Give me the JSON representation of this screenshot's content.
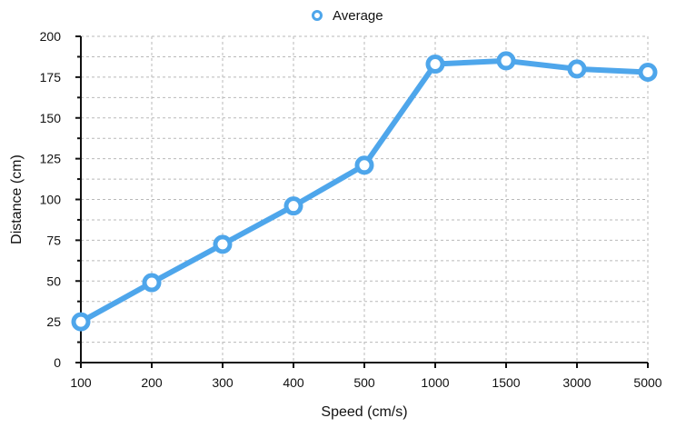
{
  "chart_data": {
    "type": "line",
    "categories": [
      "100",
      "200",
      "300",
      "400",
      "500",
      "1000",
      "1500",
      "3000",
      "5000"
    ],
    "series": [
      {
        "name": "Average",
        "values": [
          25,
          49,
          72.5,
          96,
          121,
          183,
          185,
          180,
          178
        ]
      }
    ],
    "xlabel": "Speed (cm/s)",
    "ylabel": "Distance (cm)",
    "ylim": [
      0,
      200
    ],
    "yticks": [
      0,
      25,
      50,
      75,
      100,
      125,
      150,
      175,
      200
    ],
    "grid": true,
    "legend_position": "top-center",
    "colors": {
      "series": "#4ea6eb",
      "marker_fill": "#ffffff",
      "grid": "#b9b9b9",
      "axis": "#111111"
    }
  }
}
